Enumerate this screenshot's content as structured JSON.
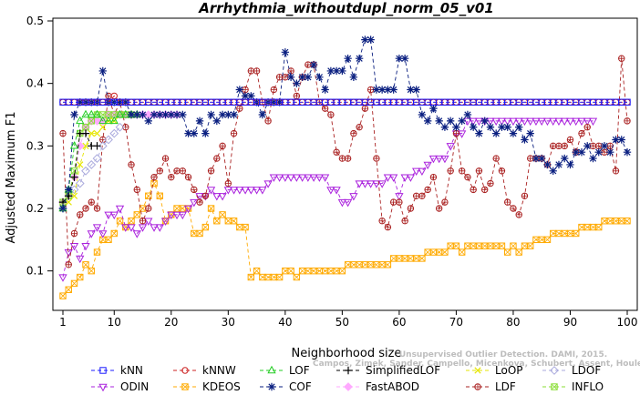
{
  "chart_data": {
    "type": "line",
    "title": "Arrhythmia_withoutdupl_norm_05_v01",
    "xlabel": "Neighborhood size",
    "ylabel": "Adjusted Maximum F1",
    "xlim": [
      1,
      100
    ],
    "ylim": [
      0.05,
      0.5
    ],
    "x_ticks": [
      1,
      10,
      20,
      30,
      40,
      50,
      60,
      70,
      80,
      90,
      100
    ],
    "y_ticks": [
      0.1,
      0.2,
      0.3,
      0.4,
      0.5
    ],
    "grid": false,
    "legend_position": "bottom",
    "watermark": "Campos, Zimek, Sander, Campello, Micenkova, Schubert, Assent, Houle",
    "watermark_top": "Unsupervised Outlier Detection. DAMI, 2015.",
    "series": [
      {
        "name": "kNN",
        "color": "#1a1aff",
        "marker": "square",
        "lty": "dashed",
        "x_start": 1,
        "values": [
          0.37,
          0.37,
          0.37,
          0.37,
          0.37,
          0.37,
          0.37,
          0.37,
          0.37,
          0.37,
          0.37,
          0.37,
          0.37,
          0.37,
          0.37,
          0.37,
          0.37,
          0.37,
          0.37,
          0.37,
          0.37,
          0.37,
          0.37,
          0.37,
          0.37,
          0.37,
          0.37,
          0.37,
          0.37,
          0.37,
          0.37,
          0.37,
          0.37,
          0.37,
          0.37,
          0.37,
          0.37,
          0.37,
          0.37,
          0.37,
          0.37,
          0.37,
          0.37,
          0.37,
          0.37,
          0.37,
          0.37,
          0.37,
          0.37,
          0.37,
          0.37,
          0.37,
          0.37,
          0.37,
          0.37,
          0.37,
          0.37,
          0.37,
          0.37,
          0.37,
          0.37,
          0.37,
          0.37,
          0.37,
          0.37,
          0.37,
          0.37,
          0.37,
          0.37,
          0.37,
          0.37,
          0.37,
          0.37,
          0.37,
          0.37,
          0.37,
          0.37,
          0.37,
          0.37,
          0.37,
          0.37,
          0.37,
          0.37,
          0.37,
          0.37,
          0.37,
          0.37,
          0.37,
          0.37,
          0.37,
          0.37,
          0.37,
          0.37,
          0.37,
          0.37,
          0.37,
          0.37,
          0.37,
          0.37,
          0.37
        ]
      },
      {
        "name": "kNNW",
        "color": "#cc2222",
        "marker": "circle",
        "lty": "dashed",
        "x_start": 1,
        "values": [
          0.37,
          0.37,
          0.37,
          0.37,
          0.37,
          0.37,
          0.37,
          0.37,
          0.37,
          0.38,
          0.37,
          0.37,
          0.37,
          0.37,
          0.37,
          0.37,
          0.37,
          0.37,
          0.37,
          0.37,
          0.37,
          0.37,
          0.37,
          0.37,
          0.37,
          0.37,
          0.37,
          0.37,
          0.37,
          0.37,
          0.37,
          0.37,
          0.37,
          0.37,
          0.37,
          0.37,
          0.37,
          0.37,
          0.37,
          0.37,
          0.37,
          0.37,
          0.37,
          0.37,
          0.37,
          0.37,
          0.37,
          0.37,
          0.37,
          0.37,
          0.37,
          0.37,
          0.37,
          0.37,
          0.37,
          0.37,
          0.37,
          0.37,
          0.37,
          0.37,
          0.37,
          0.37,
          0.37,
          0.37,
          0.37,
          0.37,
          0.37,
          0.37,
          0.37,
          0.37,
          0.37,
          0.37,
          0.37,
          0.37,
          0.37,
          0.37,
          0.37,
          0.37,
          0.37,
          0.37,
          0.37,
          0.37,
          0.37,
          0.37,
          0.37,
          0.37,
          0.37,
          0.37,
          0.37,
          0.37,
          0.37,
          0.37,
          0.37,
          0.37,
          0.37,
          0.37,
          0.37,
          0.37,
          0.37,
          0.37
        ]
      },
      {
        "name": "LOF",
        "color": "#22cc22",
        "marker": "triangle-up",
        "lty": "dashed",
        "x_start": 1,
        "values": [
          0.2,
          0.23,
          0.3,
          0.34,
          0.35,
          0.35,
          0.35,
          0.34,
          0.34,
          0.34,
          0.35,
          0.35,
          0.35,
          0.35
        ]
      },
      {
        "name": "SimplifiedLOF",
        "color": "#000000",
        "marker": "plus",
        "lty": "dashed",
        "x_start": 1,
        "values": [
          0.21,
          0.22,
          0.25,
          0.32,
          0.32,
          0.3,
          0.3
        ]
      },
      {
        "name": "LoOP",
        "color": "#e6e600",
        "marker": "x",
        "lty": "dashed",
        "x_start": 1,
        "values": [
          0.2,
          0.21,
          0.22,
          0.27,
          0.3,
          0.32,
          0.32,
          0.33,
          0.34,
          0.34,
          0.35
        ]
      },
      {
        "name": "LDOF",
        "color": "#aaaadd",
        "marker": "diamond",
        "lty": "dashed",
        "x_start": 1,
        "values": [
          0.2,
          0.22,
          0.23,
          0.24,
          0.26,
          0.27,
          0.28,
          0.3,
          0.31,
          0.32,
          0.33
        ]
      },
      {
        "name": "ODIN",
        "color": "#aa22dd",
        "marker": "triangle-down",
        "lty": "dashed",
        "x_start": 1,
        "values": [
          0.09,
          0.13,
          0.14,
          0.12,
          0.14,
          0.16,
          0.17,
          0.16,
          0.19,
          0.19,
          0.2,
          0.17,
          0.17,
          0.16,
          0.17,
          0.18,
          0.17,
          0.17,
          0.18,
          0.19,
          0.19,
          0.19,
          0.2,
          0.21,
          0.22,
          0.22,
          0.23,
          0.22,
          0.22,
          0.23,
          0.23,
          0.23,
          0.23,
          0.23,
          0.23,
          0.23,
          0.24,
          0.25,
          0.25,
          0.25,
          0.25,
          0.25,
          0.25,
          0.25,
          0.25,
          0.25,
          0.25,
          0.23,
          0.23,
          0.21,
          0.21,
          0.22,
          0.24,
          0.24,
          0.24,
          0.24,
          0.24,
          0.25,
          0.25,
          0.22,
          0.25,
          0.25,
          0.26,
          0.26,
          0.27,
          0.28,
          0.28,
          0.28,
          0.3,
          0.32,
          0.32,
          0.34,
          0.34,
          0.34,
          0.34,
          0.34,
          0.34,
          0.34,
          0.34,
          0.34,
          0.34,
          0.34,
          0.34,
          0.34,
          0.34,
          0.34,
          0.34,
          0.34,
          0.34,
          0.34,
          0.34,
          0.34,
          0.34,
          0.34
        ]
      },
      {
        "name": "KDEOS",
        "color": "#ffaa00",
        "marker": "square-x",
        "lty": "dashed",
        "x_start": 1,
        "values": [
          0.06,
          0.07,
          0.08,
          0.09,
          0.11,
          0.1,
          0.13,
          0.15,
          0.15,
          0.16,
          0.18,
          0.17,
          0.18,
          0.19,
          0.2,
          0.22,
          0.24,
          0.22,
          0.18,
          0.19,
          0.2,
          0.2,
          0.2,
          0.16,
          0.16,
          0.17,
          0.2,
          0.18,
          0.19,
          0.18,
          0.18,
          0.17,
          0.17,
          0.09,
          0.1,
          0.09,
          0.09,
          0.09,
          0.09,
          0.1,
          0.1,
          0.09,
          0.1,
          0.1,
          0.1,
          0.1,
          0.1,
          0.1,
          0.1,
          0.1,
          0.11,
          0.11,
          0.11,
          0.11,
          0.11,
          0.11,
          0.11,
          0.11,
          0.12,
          0.12,
          0.12,
          0.12,
          0.12,
          0.12,
          0.13,
          0.13,
          0.13,
          0.13,
          0.14,
          0.14,
          0.13,
          0.14,
          0.14,
          0.14,
          0.14,
          0.14,
          0.14,
          0.14,
          0.13,
          0.14,
          0.13,
          0.14,
          0.14,
          0.15,
          0.15,
          0.15,
          0.16,
          0.16,
          0.16,
          0.16,
          0.16,
          0.17,
          0.17,
          0.17,
          0.17,
          0.18,
          0.18,
          0.18,
          0.18,
          0.18
        ]
      },
      {
        "name": "COF",
        "color": "#0a1f80",
        "marker": "asterisk",
        "lty": "dashed",
        "x_start": 1,
        "values": [
          0.2,
          0.23,
          0.35,
          0.37,
          0.37,
          0.37,
          0.37,
          0.42,
          0.37,
          0.37,
          0.37,
          0.37,
          0.35,
          0.35,
          0.35,
          0.34,
          0.35,
          0.35,
          0.35,
          0.35,
          0.35,
          0.35,
          0.32,
          0.32,
          0.34,
          0.32,
          0.35,
          0.34,
          0.35,
          0.35,
          0.35,
          0.39,
          0.38,
          0.38,
          0.37,
          0.35,
          0.37,
          0.37,
          0.37,
          0.45,
          0.41,
          0.4,
          0.41,
          0.41,
          0.43,
          0.41,
          0.39,
          0.42,
          0.42,
          0.42,
          0.44,
          0.41,
          0.44,
          0.47,
          0.47,
          0.39,
          0.39,
          0.39,
          0.39,
          0.44,
          0.44,
          0.39,
          0.39,
          0.35,
          0.34,
          0.36,
          0.34,
          0.33,
          0.34,
          0.33,
          0.34,
          0.35,
          0.33,
          0.32,
          0.34,
          0.33,
          0.32,
          0.33,
          0.33,
          0.32,
          0.33,
          0.31,
          0.32,
          0.28,
          0.28,
          0.27,
          0.26,
          0.27,
          0.28,
          0.27,
          0.29,
          0.29,
          0.3,
          0.28,
          0.29,
          0.3,
          0.29,
          0.31,
          0.31,
          0.29
        ]
      },
      {
        "name": "FastABOD",
        "color": "#ffaaff",
        "marker": "diamond-filled",
        "lty": "dashed",
        "x_start": 1,
        "values": [
          0.21,
          0.22,
          0.25,
          0.3,
          0.33,
          0.34,
          0.34,
          0.34,
          0.35,
          0.35,
          0.35,
          0.35,
          0.35,
          0.35,
          0.35,
          0.35,
          0.35,
          0.35,
          0.35,
          0.35,
          0.35
        ]
      },
      {
        "name": "LDF",
        "color": "#aa2222",
        "marker": "circle-plus",
        "lty": "dashed",
        "x_start": 1,
        "values": [
          0.32,
          0.11,
          0.16,
          0.19,
          0.2,
          0.21,
          0.2,
          0.31,
          0.38,
          0.35,
          0.37,
          0.33,
          0.27,
          0.23,
          0.18,
          0.2,
          0.25,
          0.26,
          0.28,
          0.25,
          0.26,
          0.26,
          0.25,
          0.23,
          0.21,
          0.22,
          0.26,
          0.28,
          0.3,
          0.24,
          0.32,
          0.36,
          0.39,
          0.42,
          0.42,
          0.37,
          0.34,
          0.39,
          0.41,
          0.41,
          0.42,
          0.38,
          0.41,
          0.43,
          0.43,
          0.37,
          0.36,
          0.35,
          0.29,
          0.28,
          0.28,
          0.32,
          0.33,
          0.36,
          0.39,
          0.28,
          0.18,
          0.17,
          0.21,
          0.21,
          0.18,
          0.2,
          0.22,
          0.22,
          0.23,
          0.25,
          0.2,
          0.21,
          0.26,
          0.32,
          0.26,
          0.25,
          0.23,
          0.26,
          0.23,
          0.24,
          0.28,
          0.26,
          0.21,
          0.2,
          0.19,
          0.22,
          0.28,
          0.28,
          0.28,
          0.27,
          0.3,
          0.3,
          0.3,
          0.31,
          0.29,
          0.32,
          0.33,
          0.3,
          0.3,
          0.29,
          0.3,
          0.26,
          0.44,
          0.34
        ]
      },
      {
        "name": "INFLO",
        "color": "#88dd33",
        "marker": "square-x",
        "lty": "dashed",
        "x_start": 1,
        "values": [
          0.21,
          0.22,
          0.26,
          0.32,
          0.33,
          0.34,
          0.35,
          0.35,
          0.35,
          0.35,
          0.35,
          0.35,
          0.35
        ]
      }
    ]
  }
}
